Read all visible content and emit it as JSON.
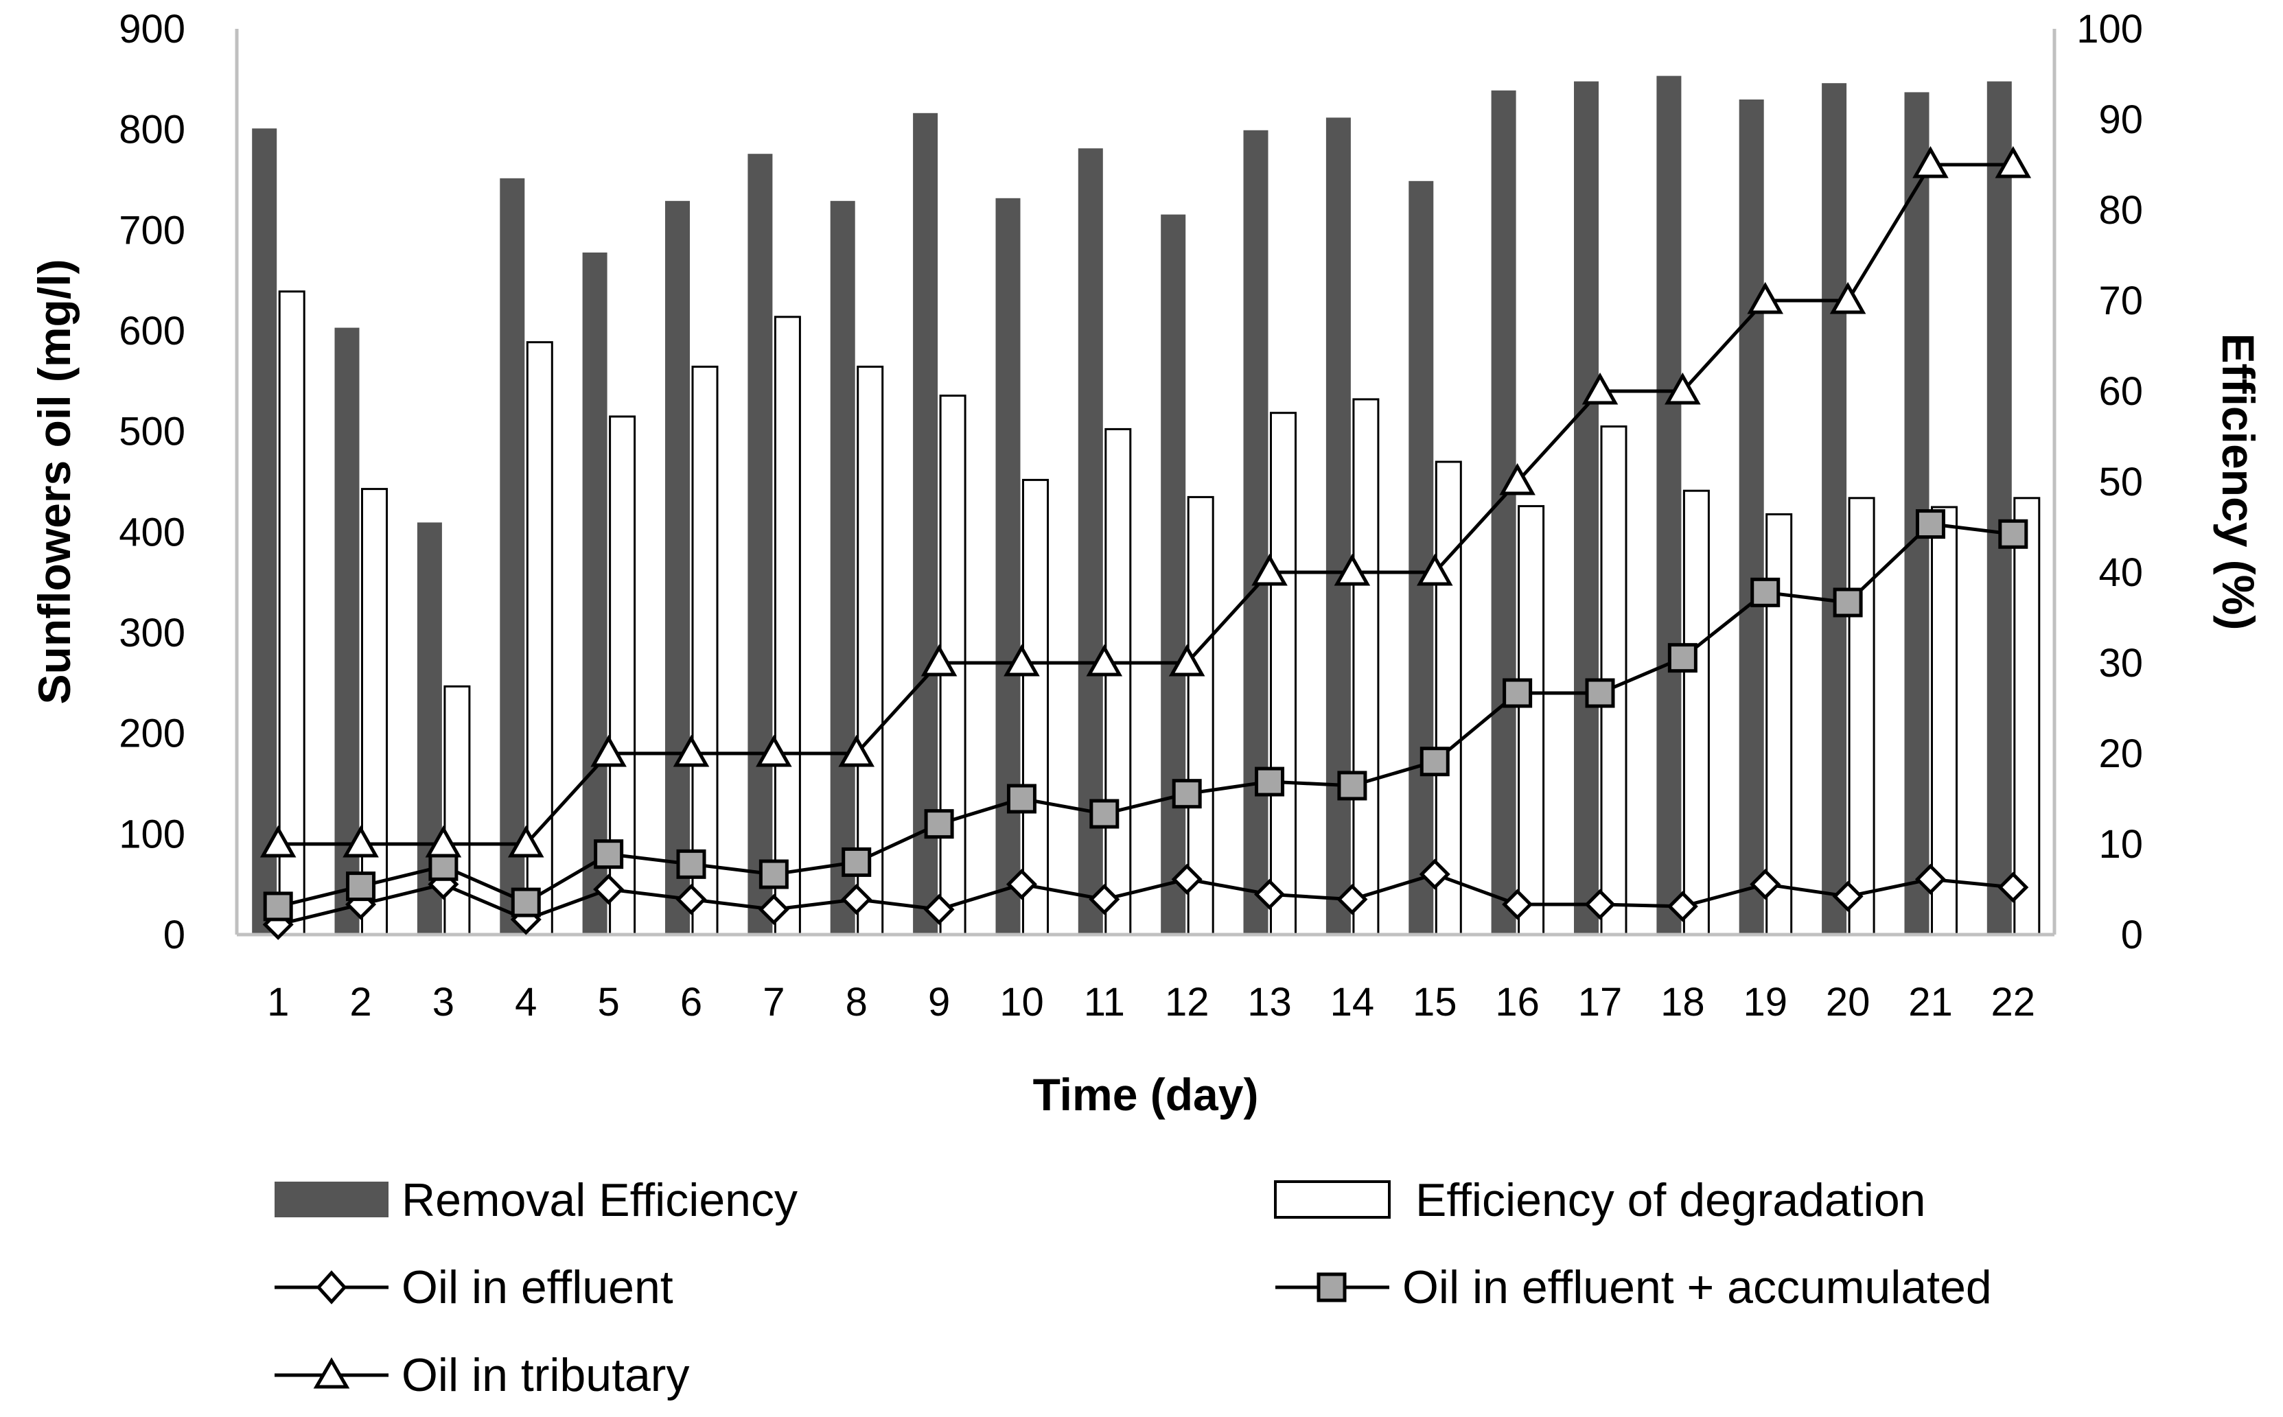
{
  "chart_data": {
    "type": "bar+line",
    "xlabel": "Time (day)",
    "ylabel_left": "Sunflowers oil (mg/l)",
    "ylabel_right": "Efficiency (%)",
    "categories": [
      "1",
      "2",
      "3",
      "4",
      "5",
      "6",
      "7",
      "8",
      "9",
      "10",
      "11",
      "12",
      "13",
      "14",
      "15",
      "16",
      "17",
      "18",
      "19",
      "20",
      "21",
      "22"
    ],
    "ylim_left": [
      0,
      900
    ],
    "yticks_left": [
      "0",
      "100",
      "200",
      "300",
      "400",
      "500",
      "600",
      "700",
      "800",
      "900"
    ],
    "ylim_right": [
      0,
      100
    ],
    "yticks_right": [
      "0",
      "10",
      "20",
      "30",
      "40",
      "50",
      "60",
      "70",
      "80",
      "90",
      "100"
    ],
    "grid": false,
    "legend_position": "bottom",
    "bar_series": [
      {
        "name": "Removal Efficiency",
        "axis": "right",
        "color": "#555555",
        "values": [
          89,
          67,
          45.5,
          83.5,
          75.3,
          81,
          86.2,
          81,
          90.7,
          81.3,
          86.8,
          79.5,
          88.8,
          90.2,
          83.2,
          93.2,
          94.2,
          94.8,
          92.2,
          94,
          93,
          94.2
        ]
      },
      {
        "name": "Efficiency of degradation",
        "axis": "right",
        "color": "#ffffff",
        "values": [
          71,
          49.2,
          27.4,
          65.4,
          57.2,
          62.7,
          68.2,
          62.7,
          59.5,
          50.2,
          55.8,
          48.3,
          57.6,
          59.1,
          52.2,
          47.3,
          56.1,
          49,
          46.4,
          48.2,
          47.2,
          48.2
        ]
      }
    ],
    "line_series": [
      {
        "name": "Oil in effluent",
        "axis": "left",
        "marker": "diamond",
        "values": [
          10,
          30,
          50,
          15,
          45,
          35,
          25,
          35,
          25,
          50,
          35,
          55,
          40,
          35,
          60,
          30,
          30,
          28,
          50,
          38,
          55,
          47
        ]
      },
      {
        "name": "Oil in effluent + accumulated",
        "axis": "left",
        "marker": "square",
        "values": [
          28,
          48,
          68,
          32,
          80,
          70,
          60,
          72,
          110,
          135,
          120,
          140,
          152,
          148,
          172,
          240,
          240,
          275,
          340,
          330,
          408,
          398
        ]
      },
      {
        "name": "Oil in tributary",
        "axis": "left",
        "marker": "triangle",
        "values": [
          90,
          90,
          90,
          90,
          180,
          180,
          180,
          180,
          270,
          270,
          270,
          270,
          360,
          360,
          360,
          450,
          540,
          540,
          630,
          630,
          765,
          765
        ]
      }
    ]
  }
}
